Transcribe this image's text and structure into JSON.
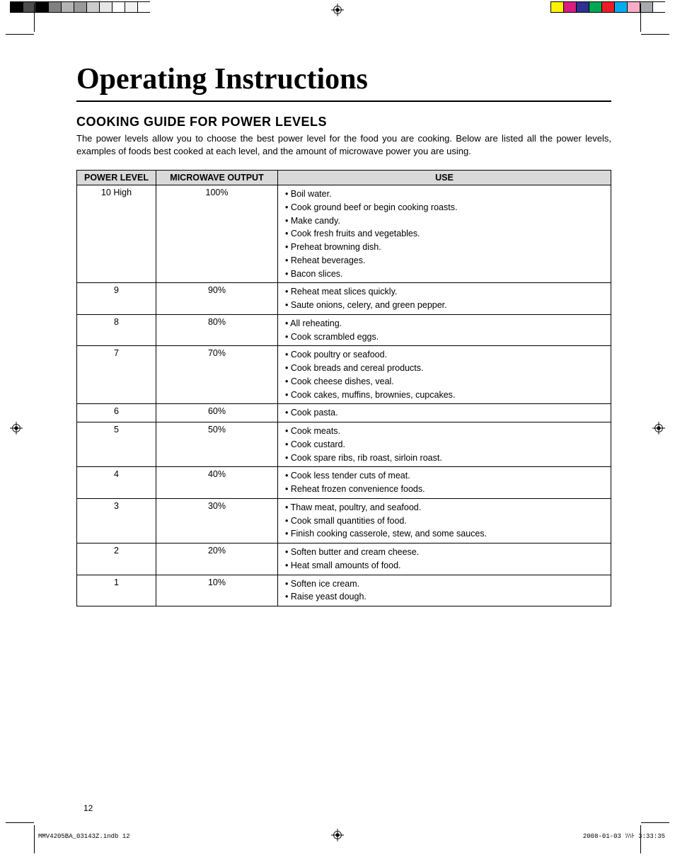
{
  "colorbars": {
    "left": [
      {
        "w": 18,
        "c": "#000000"
      },
      {
        "w": 18,
        "c": "#4d4d4d"
      },
      {
        "w": 18,
        "c": "#000000"
      },
      {
        "w": 18,
        "c": "#808080"
      },
      {
        "w": 18,
        "c": "#b3b3b3"
      },
      {
        "w": 18,
        "c": "#999999"
      },
      {
        "w": 18,
        "c": "#cccccc"
      },
      {
        "w": 18,
        "c": "#e6e6e6"
      },
      {
        "w": 18,
        "c": "#ffffff"
      },
      {
        "w": 18,
        "c": "#f2f2f2"
      },
      {
        "w": 18,
        "c": "#ffffff"
      }
    ],
    "right": [
      {
        "w": 18,
        "c": "#fff200"
      },
      {
        "w": 18,
        "c": "#d61f7f"
      },
      {
        "w": 18,
        "c": "#2e3192"
      },
      {
        "w": 18,
        "c": "#00a651"
      },
      {
        "w": 18,
        "c": "#ed1c24"
      },
      {
        "w": 18,
        "c": "#00aeef"
      },
      {
        "w": 18,
        "c": "#f7adc7"
      },
      {
        "w": 18,
        "c": "#a7a9ac"
      },
      {
        "w": 18,
        "c": "#ffffff"
      }
    ]
  },
  "title": "Operating Instructions",
  "section_heading": "COOKING GUIDE FOR POWER LEVELS",
  "intro": "The power levels allow you to choose the best power level for the food you are cooking. Below are listed all the power levels, examples of foods best cooked at each level, and the amount of microwave power you are using.",
  "table": {
    "headers": [
      "POWER LEVEL",
      "MICROWAVE OUTPUT",
      "USE"
    ],
    "rows": [
      {
        "level": "10 High",
        "output": "100%",
        "uses": [
          "Boil water.",
          "Cook ground beef or begin cooking roasts.",
          "Make candy.",
          "Cook fresh fruits and vegetables.",
          "Preheat browning dish.",
          "Reheat beverages.",
          "Bacon slices."
        ]
      },
      {
        "level": "9",
        "output": "90%",
        "uses": [
          "Reheat meat slices quickly.",
          "Saute onions, celery, and green pepper."
        ]
      },
      {
        "level": "8",
        "output": "80%",
        "uses": [
          "All reheating.",
          "Cook scrambled eggs."
        ]
      },
      {
        "level": "7",
        "output": "70%",
        "uses": [
          "Cook poultry or seafood.",
          "Cook breads and cereal products.",
          "Cook cheese dishes, veal.",
          "Cook cakes, muffins, brownies, cupcakes."
        ]
      },
      {
        "level": "6",
        "output": "60%",
        "uses": [
          "Cook pasta."
        ]
      },
      {
        "level": "5",
        "output": "50%",
        "uses": [
          "Cook meats.",
          "Cook custard.",
          "Cook spare ribs, rib roast, sirloin roast."
        ]
      },
      {
        "level": "4",
        "output": "40%",
        "uses": [
          "Cook less tender cuts of meat.",
          "Reheat frozen convenience foods."
        ]
      },
      {
        "level": "3",
        "output": "30%",
        "uses": [
          "Thaw meat, poultry, and seafood.",
          "Cook small quantities of food.",
          "Finish cooking casserole, stew, and some sauces."
        ]
      },
      {
        "level": "2",
        "output": "20%",
        "uses": [
          "Soften butter and cream cheese.",
          "Heat small amounts of food."
        ]
      },
      {
        "level": "1",
        "output": "10%",
        "uses": [
          "Soften ice cream.",
          "Raise yeast dough."
        ]
      }
    ]
  },
  "page_number": "12",
  "footer": {
    "file": "MMV4205BA_03143Z.indb   12",
    "date": "2008-01-03   ｿﾊﾄ 3:33:35"
  }
}
